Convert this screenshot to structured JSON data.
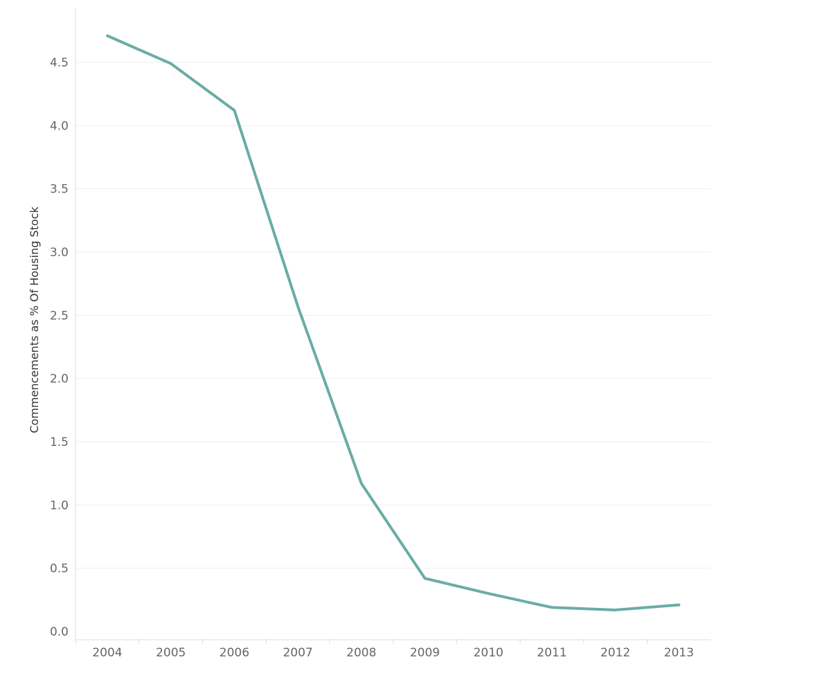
{
  "chart_data": {
    "type": "line",
    "title": "",
    "xlabel": "",
    "ylabel": "Commencements as % Of Housing Stock",
    "categories": [
      "2004",
      "2005",
      "2006",
      "2007",
      "2008",
      "2009",
      "2010",
      "2011",
      "2012",
      "2013"
    ],
    "series": [
      {
        "values": [
          4.71,
          4.49,
          4.12,
          2.57,
          1.17,
          0.42,
          0.3,
          0.19,
          0.17,
          0.21
        ]
      }
    ],
    "yticks": [
      "0.0",
      "0.5",
      "1.0",
      "1.5",
      "2.0",
      "2.5",
      "3.0",
      "3.5",
      "4.0",
      "4.5"
    ],
    "ylim": [
      0,
      4.9
    ],
    "grid": true,
    "legend": "none",
    "colors": {
      "series": "#6aaca5"
    }
  }
}
